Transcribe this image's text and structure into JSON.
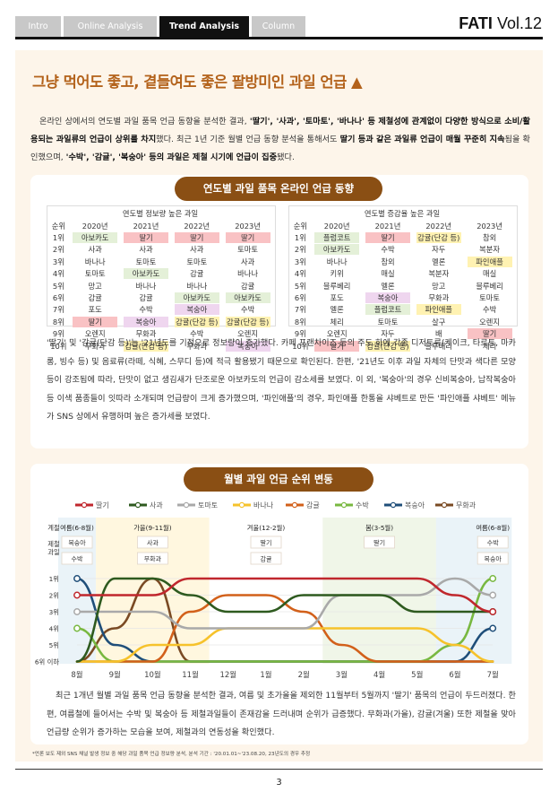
{
  "tabs": [
    "Intro",
    "Online Analysis",
    "Trend Analysis",
    "Column"
  ],
  "active_tab": "Trend Analysis",
  "brand": {
    "name": "FATI",
    "vol": "Vol.12"
  },
  "headline": "그냥 먹어도 좋고, 곁들여도 좋은 팔방미인 과일 언급 ▲",
  "intro": {
    "p1": "온라인 상에서의 연도별 과일 품목 언급 동향을 분석한 결과, ",
    "b1": "'딸기', '사과', '토마토', '바나나' 등 제철성에 관계없이 다양한 방식으로 소비/활용되는 과일류의 언급이 상위를 차지",
    "p2": "했다. 최근 1년 기준 월별 언급 동향 분석을 통해서도 ",
    "b2": "딸기 등과 같은 과일류 언급이 매월 꾸준히 지속",
    "p3": "됨을 확인했으며, ",
    "b3": "'수박', '감귤', '복숭아' 등의 과일은 제철 시기에 언급이 집중",
    "p4": "됐다."
  },
  "section1": {
    "title": "연도별 과일 품목 온라인 언급 동향",
    "left": {
      "caption": "연도별 정보량 높은 과일",
      "headers": [
        "순위",
        "2020년",
        "2021년",
        "2022년",
        "2023년"
      ],
      "rows": [
        [
          "1위",
          "아보카도",
          "딸기",
          "딸기",
          "딸기"
        ],
        [
          "2위",
          "사과",
          "사과",
          "사과",
          "토마토"
        ],
        [
          "3위",
          "바나나",
          "토마토",
          "토마토",
          "사과"
        ],
        [
          "4위",
          "토마토",
          "아보카도",
          "감귤",
          "바나나"
        ],
        [
          "5위",
          "망고",
          "바나나",
          "바나나",
          "감귤"
        ],
        [
          "6위",
          "감귤",
          "감귤",
          "아보카도",
          "아보카도"
        ],
        [
          "7위",
          "포도",
          "수박",
          "복숭아",
          "수박"
        ],
        [
          "8위",
          "딸기",
          "복숭아",
          "감귤(단감 등)",
          "감귤(단감 등)"
        ],
        [
          "9위",
          "오렌지",
          "무화과",
          "수박",
          "오렌지"
        ],
        [
          "10위",
          "무화과",
          "감귤(단감 등)",
          "무화과",
          "복숭아"
        ]
      ]
    },
    "right": {
      "caption": "연도별 증감율 높은 과일",
      "headers": [
        "순위",
        "2020년",
        "2021년",
        "2022년",
        "2023년"
      ],
      "rows": [
        [
          "1위",
          "플럼코트",
          "딸기",
          "감귤(단감 등)",
          "참외"
        ],
        [
          "2위",
          "아보카도",
          "수박",
          "자두",
          "복분자"
        ],
        [
          "3위",
          "바나나",
          "참외",
          "멜론",
          "파인애플"
        ],
        [
          "4위",
          "키위",
          "매실",
          "복분자",
          "매실"
        ],
        [
          "5위",
          "블루베리",
          "멜론",
          "망고",
          "블루베리"
        ],
        [
          "6위",
          "포도",
          "복숭아",
          "무화과",
          "토마토"
        ],
        [
          "7위",
          "멜론",
          "플럼코트",
          "파인애플",
          "수박"
        ],
        [
          "8위",
          "체리",
          "토마토",
          "살구",
          "오렌지"
        ],
        [
          "9위",
          "오렌지",
          "자두",
          "배",
          "딸기"
        ],
        [
          "10위",
          "딸기",
          "감귤(단감 등)",
          "블루베리",
          "체리"
        ]
      ]
    },
    "body": "'딸기' 및 '감귤(단감 등)'는 '21년도를 기점으로 정보량이 증가했다. 카페 프랜차이즈 등의 주도 하에 각종 디저트류(케이크, 타르트, 마카롱, 빙수 등) 및 음료류(라떼, 식혜, 스무디 등)에 적극 활용됐기 때문으로 확인된다. 한편, '21년도 이후 과일 자체의 단맛과 색다른 모양 등이 강조됨에 따라, 단맛이 없고 생김새가 단조로운 아보카도의 언급이 감소세를 보였다. 이 외, '복숭아'의 경우 신비복숭아, 납작복숭아 등 이색 품종들이 잇따라 소개되며 언급량이 크게 증가했으며, '파인애플'의 경우, 파인애플 한통을 샤베트로 만든 '파인애플 샤베트' 메뉴가 SNS 상에서 유행하며 높은 증가세를 보였다."
  },
  "section2": {
    "title": "월별 과일 언급 순위 변동",
    "row_label_season": "계절",
    "row_label_fruit": "제철\n과일",
    "seasons": [
      {
        "name": "여름(6-8월)",
        "fruits": [
          "복숭아",
          "수박"
        ]
      },
      {
        "name": "가을(9-11월)",
        "fruits": [
          "사과",
          "무화과"
        ]
      },
      {
        "name": "겨울(12-2월)",
        "fruits": [
          "딸기",
          "감귤"
        ]
      },
      {
        "name": "봄(3-5월)",
        "fruits": [
          "딸기"
        ]
      },
      {
        "name": "여름(6-8월)",
        "fruits": [
          "수박",
          "복숭아"
        ]
      }
    ],
    "y_ticks": [
      "1위",
      "2위",
      "3위",
      "4위",
      "5위",
      "6위 이하"
    ],
    "body": "최근 1개년 월별 과일 품목 언급 동향을 분석한 결과, 여름 및 초가을을 제외한 11월부터 5월까지 '딸기' 품목의 언급이 두드러졌다. 한편, 여름철에 들어서는 수박 및 복숭아 등 제철과일들이 존재감을 드러내며 순위가 급증했다. 무화과(가을), 감귤(겨울) 또한 제철을 맞아 언급량 순위가 증가하는 모습을 보여, 제철과의 연동성을 확인했다."
  },
  "chart_data": {
    "type": "line",
    "x": [
      "8월",
      "9월",
      "10월",
      "11월",
      "12월",
      "1월",
      "2월",
      "3월",
      "4월",
      "5월",
      "6월",
      "7월"
    ],
    "ylabel": "",
    "y_ticks": [
      "1위",
      "2위",
      "3위",
      "4위",
      "5위",
      "6위 이하"
    ],
    "note": "rank: 6 means 6위 이하",
    "series": [
      {
        "name": "딸기",
        "color": "#c0272d",
        "values": [
          2,
          2,
          2,
          1,
          1,
          1,
          1,
          1,
          1,
          1,
          2,
          3
        ]
      },
      {
        "name": "사과",
        "color": "#2e5a1f",
        "values": [
          6,
          1,
          1,
          2,
          3,
          3,
          2,
          2,
          2,
          3,
          3,
          3
        ]
      },
      {
        "name": "토마토",
        "color": "#a9a9a9",
        "values": [
          3,
          3,
          3,
          4,
          4,
          4,
          4,
          2,
          2,
          2,
          1,
          2
        ]
      },
      {
        "name": "바나나",
        "color": "#f6c22b",
        "values": [
          6,
          6,
          5,
          5,
          4,
          4,
          4,
          4,
          4,
          4,
          5,
          6
        ]
      },
      {
        "name": "감귤",
        "color": "#d2601a",
        "values": [
          6,
          6,
          6,
          3,
          2,
          2,
          3,
          5,
          6,
          6,
          6,
          6
        ]
      },
      {
        "name": "수박",
        "color": "#78b840",
        "values": [
          4,
          6,
          6,
          6,
          6,
          6,
          6,
          6,
          6,
          6,
          5,
          1
        ]
      },
      {
        "name": "복숭아",
        "color": "#1f4e79",
        "values": [
          1,
          5,
          6,
          6,
          6,
          6,
          6,
          6,
          6,
          6,
          6,
          4
        ]
      },
      {
        "name": "무화과",
        "color": "#7a4a23",
        "values": [
          6,
          4,
          1,
          6,
          6,
          6,
          6,
          6,
          6,
          6,
          6,
          6
        ]
      }
    ]
  },
  "footnote": "*언론 보도 제외 SNS 채널 발생 정보 중 해당 과일 품목 언급 정보량 분석, 분석 기간 : '20.01.01~'23.08.20, 23년도의 경우 추정",
  "page_number": "3"
}
